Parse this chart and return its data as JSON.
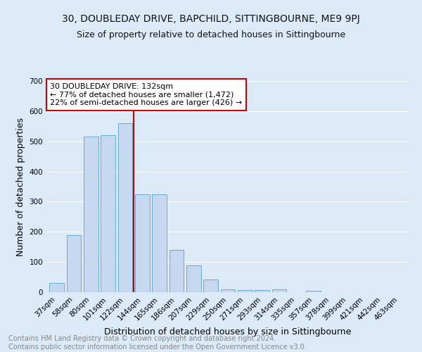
{
  "title": "30, DOUBLEDAY DRIVE, BAPCHILD, SITTINGBOURNE, ME9 9PJ",
  "subtitle": "Size of property relative to detached houses in Sittingbourne",
  "xlabel": "Distribution of detached houses by size in Sittingbourne",
  "ylabel": "Number of detached properties",
  "footer_line1": "Contains HM Land Registry data © Crown copyright and database right 2024.",
  "footer_line2": "Contains public sector information licensed under the Open Government Licence v3.0.",
  "categories": [
    "37sqm",
    "58sqm",
    "80sqm",
    "101sqm",
    "122sqm",
    "144sqm",
    "165sqm",
    "186sqm",
    "207sqm",
    "229sqm",
    "250sqm",
    "271sqm",
    "293sqm",
    "314sqm",
    "335sqm",
    "357sqm",
    "378sqm",
    "399sqm",
    "421sqm",
    "442sqm",
    "463sqm"
  ],
  "values": [
    30,
    190,
    515,
    520,
    560,
    325,
    325,
    140,
    88,
    42,
    10,
    8,
    8,
    10,
    0,
    5,
    0,
    0,
    0,
    0,
    0
  ],
  "bar_color": "#c5d8f0",
  "bar_edge_color": "#6aaad4",
  "vline_x": 4.5,
  "vline_color": "#cc0000",
  "annotation_text": "30 DOUBLEDAY DRIVE: 132sqm\n← 77% of detached houses are smaller (1,472)\n22% of semi-detached houses are larger (426) →",
  "annotation_box_color": "#ffffff",
  "annotation_box_edge": "#cc0000",
  "ylim": [
    0,
    700
  ],
  "yticks": [
    0,
    100,
    200,
    300,
    400,
    500,
    600,
    700
  ],
  "background_color": "#dce9f7",
  "plot_bg_color": "#dce9f7",
  "grid_color": "#ffffff",
  "title_fontsize": 10,
  "subtitle_fontsize": 9,
  "axis_label_fontsize": 9,
  "tick_fontsize": 7.5,
  "footer_fontsize": 7
}
